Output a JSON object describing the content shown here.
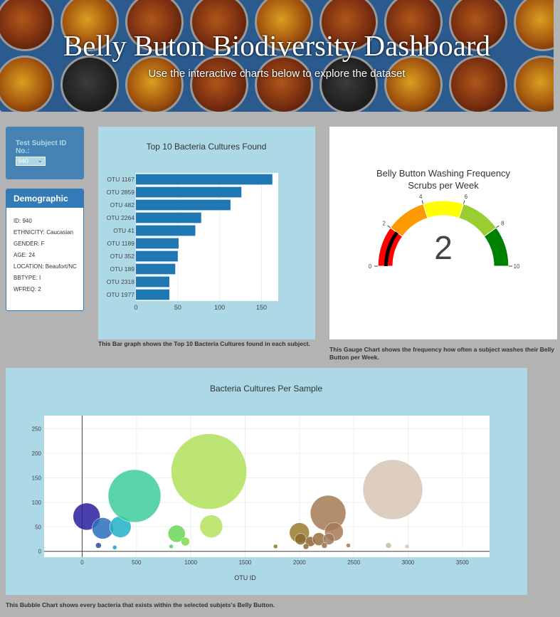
{
  "header": {
    "title": "Belly Buton Biodiversity Dashboard",
    "subtitle": "Use the interactive charts below to explore the dataset"
  },
  "selector": {
    "label": "Test Subject ID No.:",
    "value": "940"
  },
  "demographics": {
    "title": "Demographic Info",
    "rows": [
      "ID: 940",
      "ETHNICITY: Caucasian",
      "GENDER: F",
      "AGE: 24",
      "LOCATION: Beaufort/NC",
      "BBTYPE: I",
      "WFREQ: 2"
    ]
  },
  "captions": {
    "bar": "This Bar graph shows the Top 10 Bacteria Cultures found in each subject.",
    "gauge": "This Gauge Chart shows the frequency how often a subject washes their Belly Button per Week.",
    "bubble": "This Bubble Chart shows every bacteria that exists within the selected subjets's Belly Button."
  },
  "colors": {
    "bar": "#1f77b4",
    "gauge_zones": [
      "#ff0000",
      "#ff9900",
      "#ffff00",
      "#9acd32",
      "#008000"
    ],
    "panel_bg": "#add8e6"
  },
  "chart_data": [
    {
      "type": "bar",
      "orientation": "horizontal",
      "title": "Top 10 Bacteria Cultures Found",
      "categories": [
        "OTU 1167",
        "OTU 2859",
        "OTU 482",
        "OTU 2264",
        "OTU 41",
        "OTU 1189",
        "OTU 352",
        "OTU 189",
        "OTU 2318",
        "OTU 1977"
      ],
      "values": [
        163,
        126,
        113,
        78,
        71,
        51,
        50,
        47,
        40,
        40
      ],
      "xlim": [
        0,
        170
      ],
      "xticks": [
        0,
        50,
        100,
        150
      ]
    },
    {
      "type": "gauge",
      "title": "Belly Button Washing Frequency",
      "subtitle": "Scrubs per Week",
      "value": 2,
      "range": [
        0,
        10
      ],
      "ticks": [
        0,
        2,
        4,
        6,
        8,
        10
      ]
    },
    {
      "type": "scatter",
      "title": "Bacteria Cultures Per Sample",
      "xlabel": "OTU ID",
      "xlim": [
        -350,
        3750
      ],
      "ylim": [
        -12,
        277
      ],
      "xticks": [
        0,
        500,
        1000,
        1500,
        2000,
        2500,
        3000,
        3500
      ],
      "yticks": [
        0,
        50,
        100,
        150,
        200,
        250
      ],
      "points": [
        {
          "x": 41,
          "y": 71,
          "r": 19,
          "c": "#2a1e9c"
        },
        {
          "x": 189,
          "y": 47,
          "r": 15,
          "c": "#2c6fbb"
        },
        {
          "x": 352,
          "y": 50,
          "r": 15,
          "c": "#20b1c4"
        },
        {
          "x": 482,
          "y": 113,
          "r": 37,
          "c": "#3ecb9c"
        },
        {
          "x": 870,
          "y": 36,
          "r": 12,
          "c": "#6ad655"
        },
        {
          "x": 950,
          "y": 20,
          "r": 6,
          "c": "#7ed94e"
        },
        {
          "x": 1167,
          "y": 163,
          "r": 53,
          "c": "#b2e05a"
        },
        {
          "x": 1189,
          "y": 51,
          "r": 16,
          "c": "#b7e25e"
        },
        {
          "x": 2000,
          "y": 38,
          "r": 14,
          "c": "#9a7a30"
        },
        {
          "x": 2010,
          "y": 25,
          "r": 8,
          "c": "#8a6a28"
        },
        {
          "x": 2100,
          "y": 20,
          "r": 7,
          "c": "#8d6530"
        },
        {
          "x": 2180,
          "y": 25,
          "r": 9,
          "c": "#9a6e3e"
        },
        {
          "x": 2264,
          "y": 78,
          "r": 25,
          "c": "#a57a55"
        },
        {
          "x": 2318,
          "y": 40,
          "r": 13,
          "c": "#a47a55"
        },
        {
          "x": 2270,
          "y": 25,
          "r": 8,
          "c": "#a07858"
        },
        {
          "x": 2859,
          "y": 126,
          "r": 42,
          "c": "#d6c4b3"
        },
        {
          "x": 150,
          "y": 12,
          "r": 4,
          "c": "#2c4fa0"
        },
        {
          "x": 300,
          "y": 8,
          "r": 3,
          "c": "#209ec0"
        },
        {
          "x": 820,
          "y": 10,
          "r": 3,
          "c": "#5bd060"
        },
        {
          "x": 1780,
          "y": 10,
          "r": 3,
          "c": "#8a7a30"
        },
        {
          "x": 2060,
          "y": 10,
          "r": 4,
          "c": "#8a6a30"
        },
        {
          "x": 2230,
          "y": 12,
          "r": 4,
          "c": "#9a6e40"
        },
        {
          "x": 2450,
          "y": 12,
          "r": 3,
          "c": "#a4785a"
        },
        {
          "x": 2820,
          "y": 12,
          "r": 4,
          "c": "#cdb8a5"
        },
        {
          "x": 2990,
          "y": 10,
          "r": 3,
          "c": "#d6c4b3"
        }
      ]
    }
  ]
}
